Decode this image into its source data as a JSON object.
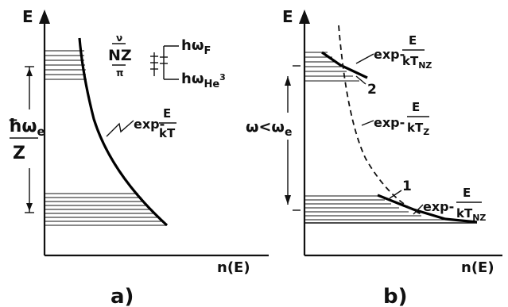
{
  "panel_a": {
    "caption": "a)",
    "y_axis_label": "E",
    "x_axis_label": "n(E)",
    "energy_gap_label_top": "ħω",
    "energy_gap_label_sub": "e",
    "energy_gap_label_bottom": "Z",
    "curve_label_prefix": "exp-",
    "curve_label_num": "E",
    "curve_label_den": "kT",
    "transition_top": "ν",
    "transition_mid": "NZ",
    "transition_bottom": "π",
    "upper_level_label": "hω",
    "upper_level_sub": "F",
    "lower_level_label": "hω",
    "lower_level_sub": "He",
    "lower_level_sup": "3"
  },
  "panel_b": {
    "caption": "b)",
    "y_axis_label": "E",
    "x_axis_label": "n(E)",
    "freq_relation_prefix": "ω<ω",
    "freq_relation_sub": "e",
    "upper_exp_prefix": "exp-",
    "upper_exp_num": "E",
    "upper_exp_den": "kT",
    "upper_exp_den_sub": "NZ",
    "mid_exp_prefix": "exp-",
    "mid_exp_num": "E",
    "mid_exp_den": "kT",
    "mid_exp_den_sub": "Z",
    "lower_exp_prefix": "exp-",
    "lower_exp_num": "E",
    "lower_exp_den": "kT",
    "lower_exp_den_sub": "NZ",
    "marker_1": "1",
    "marker_2": "2"
  }
}
